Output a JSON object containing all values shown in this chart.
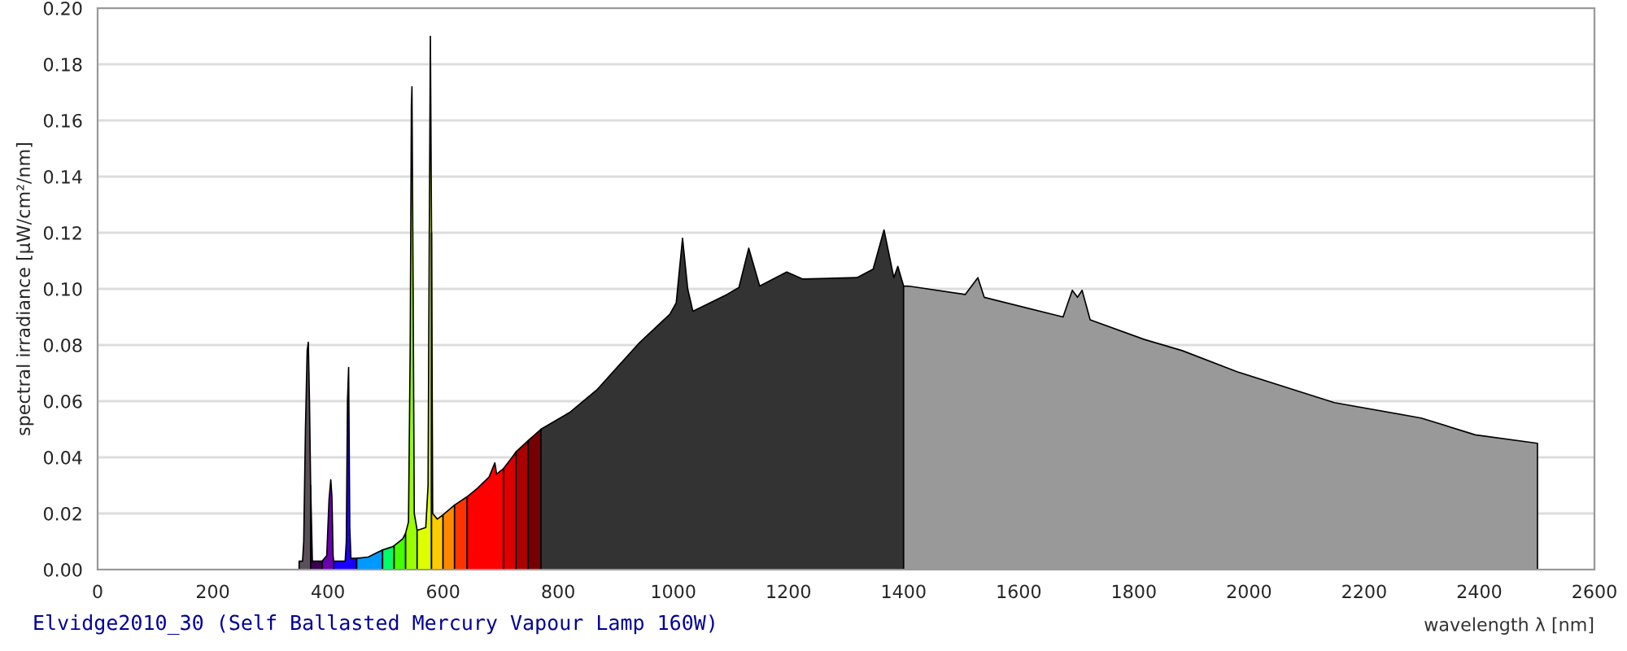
{
  "chart_data": {
    "type": "area",
    "title": "Elvidge2010_30 (Self Ballasted Mercury Vapour Lamp 160W)",
    "xlabel": "wavelength λ [nm]",
    "ylabel": "spectral irradiance [µW/cm²/nm]",
    "xlim": [
      0,
      2600
    ],
    "xticks": [
      0,
      200,
      400,
      600,
      800,
      1000,
      1200,
      1400,
      1600,
      1800,
      2000,
      2200,
      2400,
      2600
    ],
    "ylim": [
      0,
      0.2
    ],
    "yticks": [
      {
        "value": 0,
        "label": "0.00"
      },
      {
        "value": 0.02,
        "label": "0.02"
      },
      {
        "value": 0.04,
        "label": "0.04"
      },
      {
        "value": 0.06,
        "label": "0.06"
      },
      {
        "value": 0.08,
        "label": "0.08"
      },
      {
        "value": 0.1,
        "label": "0.10"
      },
      {
        "value": 0.12,
        "label": "0.12"
      },
      {
        "value": 0.14,
        "label": "0.14"
      },
      {
        "value": 0.16,
        "label": "0.16"
      },
      {
        "value": 0.18,
        "label": "0.18"
      },
      {
        "value": 0.2,
        "label": "0.20"
      }
    ],
    "grid": "y",
    "legend": false,
    "series": [
      {
        "color": "#5a505a",
        "x": [
          350,
          356,
          358,
          361,
          364,
          366,
          368,
          370
        ],
        "values": [
          0.003,
          0.003,
          0.01,
          0.05,
          0.078,
          0.081,
          0.06,
          0.03
        ]
      },
      {
        "color": "#3c0050",
        "x": [
          370,
          373,
          390
        ],
        "values": [
          0.03,
          0.003,
          0.003
        ]
      },
      {
        "color": "#6a00b0",
        "x": [
          390,
          398,
          402,
          405,
          407,
          409,
          410
        ],
        "values": [
          0.003,
          0.005,
          0.025,
          0.032,
          0.026,
          0.005,
          0.003
        ]
      },
      {
        "color": "#1a00ff",
        "x": [
          410,
          430,
          432,
          434,
          436,
          438,
          440,
          450
        ],
        "values": [
          0.003,
          0.003,
          0.01,
          0.06,
          0.072,
          0.015,
          0.004,
          0.004
        ]
      },
      {
        "color": "#0099ff",
        "x": [
          450,
          470,
          490,
          495
        ],
        "values": [
          0.004,
          0.0045,
          0.0065,
          0.007
        ]
      },
      {
        "color": "#00ff66",
        "x": [
          495,
          510,
          515
        ],
        "values": [
          0.007,
          0.008,
          0.0085
        ]
      },
      {
        "color": "#44ff00",
        "x": [
          515,
          530,
          535
        ],
        "values": [
          0.0085,
          0.011,
          0.013
        ]
      },
      {
        "color": "#99ff00",
        "x": [
          535,
          540,
          543,
          545,
          546,
          548,
          550,
          555
        ],
        "values": [
          0.013,
          0.017,
          0.08,
          0.165,
          0.172,
          0.1,
          0.02,
          0.014
        ]
      },
      {
        "color": "#ddff00",
        "x": [
          555,
          570,
          574,
          576,
          578,
          580
        ],
        "values": [
          0.014,
          0.015,
          0.03,
          0.115,
          0.19,
          0.12
        ]
      },
      {
        "color": "#ffcc00",
        "x": [
          580,
          582,
          590,
          600
        ],
        "values": [
          0.12,
          0.02,
          0.018,
          0.0195
        ]
      },
      {
        "color": "#ff8800",
        "x": [
          600,
          620
        ],
        "values": [
          0.0195,
          0.023
        ]
      },
      {
        "color": "#ff3300",
        "x": [
          620,
          642
        ],
        "values": [
          0.023,
          0.026
        ]
      },
      {
        "color": "#ff0000",
        "x": [
          642,
          660,
          680,
          690,
          693,
          705
        ],
        "values": [
          0.026,
          0.029,
          0.033,
          0.038,
          0.034,
          0.036
        ]
      },
      {
        "color": "#dd0000",
        "x": [
          705,
          720,
          727
        ],
        "values": [
          0.036,
          0.04,
          0.042
        ]
      },
      {
        "color": "#aa0000",
        "x": [
          727,
          748
        ],
        "values": [
          0.042,
          0.046
        ]
      },
      {
        "color": "#770000",
        "x": [
          748,
          770
        ],
        "values": [
          0.046,
          0.05
        ]
      },
      {
        "color": "#333333",
        "x": [
          770,
          820,
          867,
          942,
          994,
          1005,
          1016,
          1025,
          1034,
          1093,
          1114,
          1131,
          1150,
          1197,
          1225,
          1319,
          1347,
          1366,
          1383,
          1390,
          1400
        ],
        "values": [
          0.05,
          0.056,
          0.064,
          0.081,
          0.091,
          0.095,
          0.118,
          0.1,
          0.092,
          0.098,
          0.1005,
          0.1145,
          0.101,
          0.106,
          0.1035,
          0.104,
          0.107,
          0.121,
          0.104,
          0.108,
          0.101
        ]
      },
      {
        "color": "#999999",
        "x": [
          1400,
          1408,
          1507,
          1529,
          1540,
          1677,
          1693,
          1702,
          1710,
          1724,
          1818,
          1884,
          1979,
          2148,
          2299,
          2393,
          2501
        ],
        "values": [
          0.101,
          0.101,
          0.098,
          0.104,
          0.097,
          0.09,
          0.0995,
          0.097,
          0.0995,
          0.089,
          0.082,
          0.078,
          0.0705,
          0.0595,
          0.054,
          0.048,
          0.045
        ]
      }
    ]
  }
}
